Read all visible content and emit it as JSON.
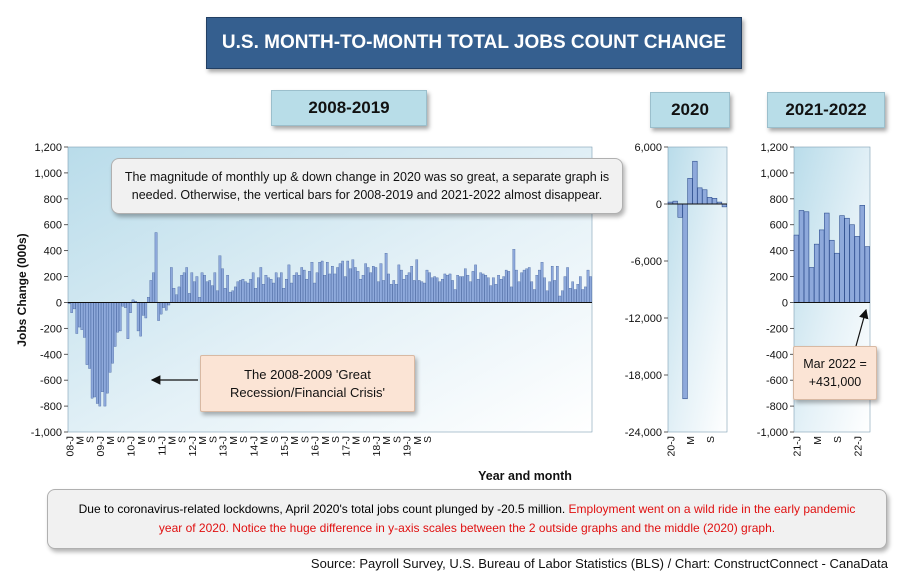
{
  "title": "U.S. MONTH-TO-MONTH TOTAL JOBS COUNT CHANGE",
  "panel_labels": [
    "2008-2019",
    "2020",
    "2021-2022"
  ],
  "notes": {
    "magnitude": "The magnitude of monthly up & down change in 2020 was so great, a separate graph is needed. Otherwise, the vertical bars for 2008-2019 and 2021-2022 almost disappear.",
    "recession": "The 2008-2009 'Great Recession/Financial Crisis'",
    "mar2022": "Mar 2022 = +431,000"
  },
  "bottom_note": {
    "black": "Due to coronavirus-related lockdowns, April 2020's total jobs count plunged by -20.5 million.",
    "red": "Employment went on a wild ride in the early pandemic year of 2020. Notice the huge difference in y-axis scales between the 2 outside graphs and the middle (2020) graph."
  },
  "source": "Source: Payroll Survey, U.S. Bureau of Labor Statistics (BLS) / Chart: ConstructConnect - CanaData",
  "colors": {
    "bar_fill": "#8ea9db",
    "bar_stroke": "#2f4f8f",
    "title_bg": "#355f8f",
    "label_bg": "#b8dde8",
    "red_text": "#e01010"
  },
  "chart_data": [
    {
      "type": "bar",
      "panel": "2008-2019",
      "ylabel": "Jobs Change (000s)",
      "xlabel": "Year and month",
      "ylim": [
        -1000,
        1200
      ],
      "yticks": [
        "1,200",
        "1,000",
        "800",
        "600",
        "400",
        "200",
        "0",
        "-200",
        "-400",
        "-600",
        "-800",
        "-1,000"
      ],
      "xtick_labels": [
        "08-J",
        "M",
        "S",
        "09-J",
        "M",
        "S",
        "10-J",
        "M",
        "S",
        "11-J",
        "M",
        "S",
        "12-J",
        "M",
        "S",
        "13-J",
        "M",
        "S",
        "14-J",
        "M",
        "S",
        "15-J",
        "M",
        "S",
        "16-J",
        "M",
        "S",
        "17-J",
        "M",
        "S",
        "18-J",
        "M",
        "S",
        "19-J",
        "M",
        "S"
      ],
      "values": [
        -10,
        -80,
        -50,
        -240,
        -190,
        -210,
        -270,
        -480,
        -510,
        -740,
        -730,
        -780,
        -800,
        -690,
        -800,
        -700,
        -540,
        -470,
        -340,
        -230,
        -220,
        -30,
        -40,
        -280,
        -80,
        20,
        10,
        -220,
        -260,
        -100,
        -120,
        40,
        170,
        230,
        540,
        -140,
        -90,
        -40,
        -60,
        -20,
        270,
        110,
        60,
        120,
        210,
        230,
        270,
        70,
        230,
        160,
        200,
        40,
        230,
        210,
        160,
        170,
        130,
        230,
        90,
        360,
        260,
        110,
        210,
        80,
        90,
        120,
        160,
        170,
        180,
        160,
        150,
        180,
        230,
        110,
        190,
        270,
        140,
        210,
        190,
        180,
        150,
        230,
        190,
        230,
        110,
        180,
        290,
        150,
        210,
        230,
        210,
        270,
        250,
        180,
        240,
        310,
        150,
        230,
        310,
        320,
        210,
        310,
        220,
        280,
        220,
        270,
        300,
        320,
        200,
        320,
        260,
        330,
        270,
        240,
        180,
        210,
        300,
        270,
        230,
        280,
        270,
        160,
        300,
        170,
        380,
        220,
        140,
        170,
        140,
        290,
        250,
        180,
        210,
        230,
        280,
        170,
        330,
        170,
        160,
        150,
        250,
        230,
        190,
        200,
        190,
        160,
        180,
        220,
        210,
        220,
        170,
        100,
        210,
        200,
        200,
        260,
        210,
        160,
        240,
        290,
        180,
        230,
        220,
        210,
        190,
        130,
        190,
        140,
        210,
        180,
        200,
        250,
        240,
        120,
        410,
        250,
        160,
        230,
        250,
        260,
        270,
        160,
        100,
        210,
        250,
        310,
        190,
        90,
        160,
        280,
        170,
        280,
        50,
        90,
        200,
        270,
        110,
        160,
        100,
        140,
        200,
        100,
        120,
        250,
        200
      ]
    },
    {
      "type": "bar",
      "panel": "2020",
      "ylim": [
        -24000,
        6000
      ],
      "yticks": [
        "6,000",
        "0",
        "-6,000",
        "-12,000",
        "-18,000",
        "-24,000"
      ],
      "xtick_labels": [
        "20-J",
        "M",
        "S"
      ],
      "values": [
        200,
        300,
        -1400,
        -20500,
        2700,
        4500,
        1700,
        1500,
        700,
        600,
        200,
        -300
      ]
    },
    {
      "type": "bar",
      "panel": "2021-2022",
      "ylim": [
        -1000,
        1200
      ],
      "yticks": [
        "1,200",
        "1,000",
        "800",
        "600",
        "400",
        "200",
        "0",
        "-200",
        "-400",
        "-600",
        "-800",
        "-1,000"
      ],
      "xtick_labels": [
        "21-J",
        "M",
        "S",
        "22-J"
      ],
      "values": [
        520,
        710,
        700,
        270,
        450,
        560,
        690,
        480,
        380,
        670,
        650,
        600,
        510,
        750,
        431
      ]
    }
  ]
}
